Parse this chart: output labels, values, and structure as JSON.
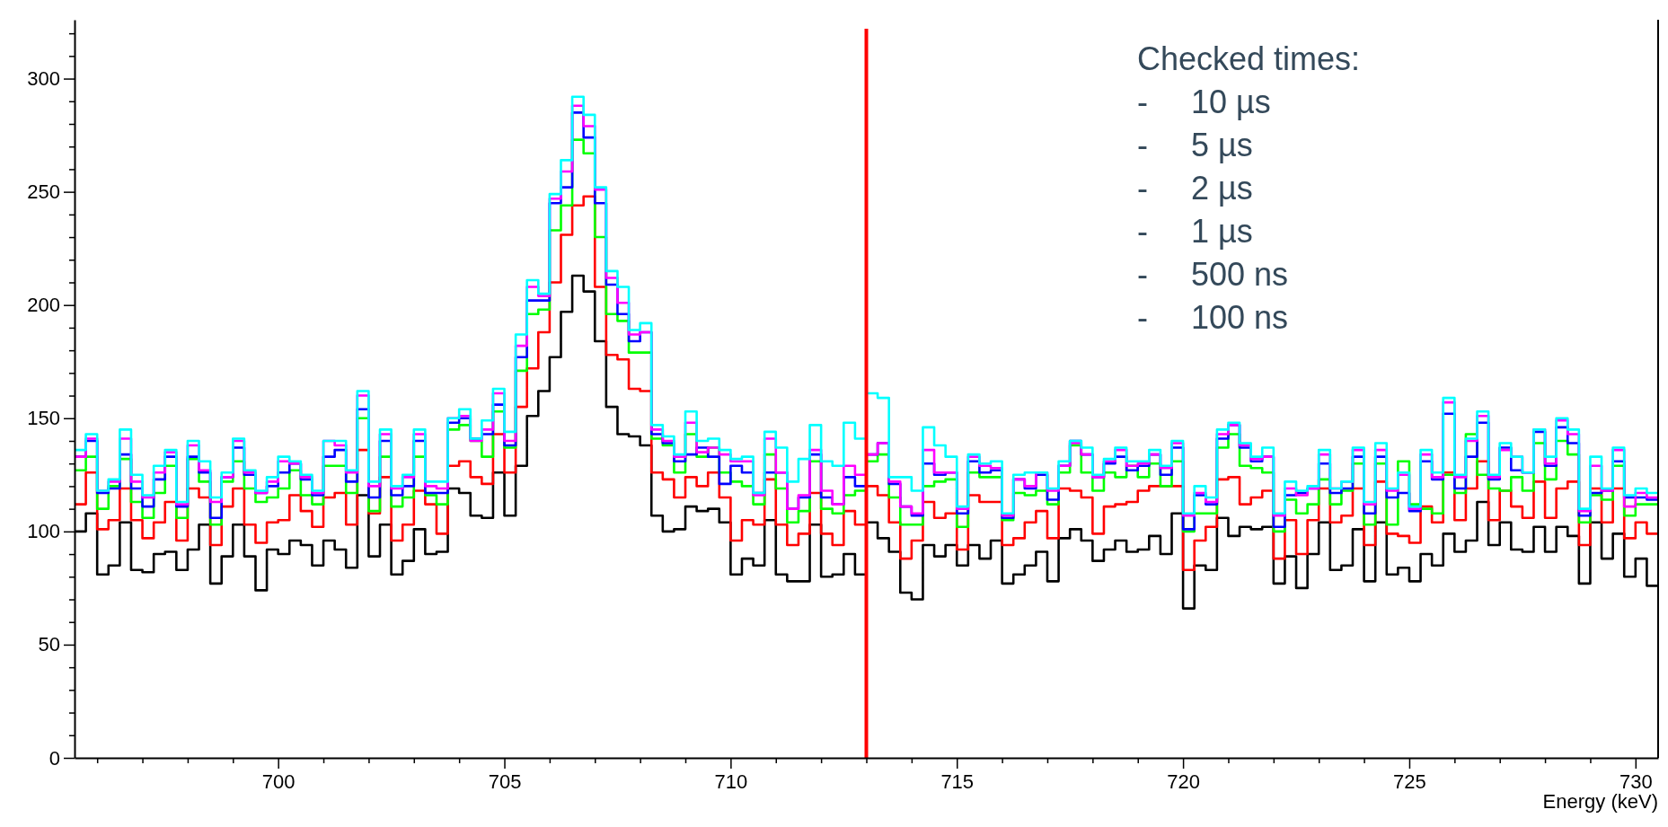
{
  "chart_data": {
    "type": "histogram",
    "xlabel": "Energy (keV)",
    "bins": [
      695.5,
      695.75,
      696,
      696.25,
      696.5,
      696.75,
      697,
      697.25,
      697.5,
      697.75,
      698,
      698.25,
      698.5,
      698.75,
      699,
      699.25,
      699.5,
      699.75,
      700,
      700.25,
      700.5,
      700.75,
      701,
      701.25,
      701.5,
      701.75,
      702,
      702.25,
      702.5,
      702.75,
      703,
      703.25,
      703.5,
      703.75,
      704,
      704.25,
      704.5,
      704.75,
      705,
      705.25,
      705.5,
      705.75,
      706,
      706.25,
      706.5,
      706.75,
      707,
      707.25,
      707.5,
      707.75,
      708,
      708.25,
      708.5,
      708.75,
      709,
      709.25,
      709.5,
      709.75,
      710,
      710.25,
      710.5,
      710.75,
      711,
      711.25,
      711.5,
      711.75,
      712,
      712.25,
      712.5,
      712.75,
      713,
      713.25,
      713.5,
      713.75,
      714,
      714.25,
      714.5,
      714.75,
      715,
      715.25,
      715.5,
      715.75,
      716,
      716.25,
      716.5,
      716.75,
      717,
      717.25,
      717.5,
      717.75,
      718,
      718.25,
      718.5,
      718.75,
      719,
      719.25,
      719.5,
      719.75,
      720,
      720.25,
      720.5,
      720.75,
      721,
      721.25,
      721.5,
      721.75,
      722,
      722.25,
      722.5,
      722.75,
      723,
      723.25,
      723.5,
      723.75,
      724,
      724.25,
      724.5,
      724.75,
      725,
      725.25,
      725.5,
      725.75,
      726,
      726.25,
      726.5,
      726.75,
      727,
      727.25,
      727.5,
      727.75,
      728,
      728.25,
      728.5,
      728.75,
      729,
      729.25,
      729.5,
      729.75,
      730,
      730.25,
      730.5
    ],
    "series": [
      {
        "color": "#000000",
        "values": [
          100,
          108,
          81,
          85,
          104,
          83,
          82,
          90,
          91,
          83,
          92,
          103,
          77,
          89,
          103,
          89,
          74,
          92,
          90,
          96,
          94,
          85,
          96,
          92,
          84,
          116,
          89,
          103,
          81,
          87,
          101,
          90,
          91,
          119,
          117,
          107,
          106,
          126,
          107,
          129,
          151,
          162,
          177,
          197,
          213,
          206,
          184,
          155,
          143,
          142,
          138,
          107,
          100,
          101,
          111,
          109,
          110,
          104,
          81,
          88,
          85,
          105,
          81,
          78,
          78,
          103,
          80,
          81,
          90,
          81,
          104,
          97,
          91,
          73,
          70,
          94,
          89,
          94,
          85,
          94,
          88,
          96,
          77,
          81,
          85,
          91,
          78,
          97,
          101,
          96,
          87,
          92,
          96,
          91,
          92,
          98,
          90,
          108,
          66,
          85,
          83,
          106,
          98,
          102,
          101,
          102,
          77,
          89,
          75,
          90,
          104,
          83,
          85,
          101,
          78,
          104,
          81,
          84,
          78,
          90,
          85,
          99,
          91,
          96,
          113,
          94,
          104,
          92,
          91,
          102,
          91,
          102,
          98,
          77,
          104,
          88,
          99,
          80,
          88,
          76
        ]
      },
      {
        "color": "#ff0000",
        "values": [
          112,
          126,
          101,
          105,
          119,
          105,
          97,
          104,
          113,
          96,
          119,
          115,
          94,
          111,
          119,
          103,
          95,
          104,
          105,
          116,
          109,
          102,
          115,
          117,
          103,
          136,
          108,
          124,
          96,
          103,
          118,
          112,
          99,
          129,
          131,
          124,
          121,
          143,
          126,
          155,
          172,
          188,
          210,
          231,
          244,
          248,
          208,
          178,
          176,
          163,
          162,
          126,
          123,
          115,
          124,
          120,
          126,
          115,
          96,
          105,
          103,
          123,
          103,
          94,
          99,
          117,
          99,
          94,
          109,
          103,
          120,
          116,
          104,
          88,
          96,
          113,
          106,
          108,
          92,
          116,
          113,
          113,
          94,
          97,
          104,
          109,
          97,
          119,
          118,
          115,
          99,
          111,
          112,
          113,
          118,
          120,
          120,
          120,
          83,
          96,
          102,
          123,
          124,
          112,
          115,
          118,
          88,
          105,
          90,
          105,
          119,
          104,
          107,
          119,
          94,
          122,
          99,
          98,
          95,
          111,
          104,
          126,
          105,
          119,
          131,
          105,
          118,
          111,
          106,
          122,
          106,
          119,
          122,
          94,
          119,
          104,
          119,
          97,
          104,
          99
        ]
      },
      {
        "color": "#00ff00",
        "values": [
          127,
          133,
          110,
          120,
          132,
          113,
          106,
          117,
          129,
          106,
          132,
          122,
          103,
          122,
          131,
          119,
          113,
          115,
          119,
          127,
          116,
          112,
          129,
          129,
          117,
          150,
          109,
          133,
          111,
          115,
          133,
          116,
          112,
          145,
          147,
          140,
          133,
          153,
          137,
          171,
          196,
          198,
          233,
          244,
          273,
          267,
          230,
          196,
          193,
          179,
          179,
          141,
          138,
          126,
          143,
          133,
          137,
          126,
          122,
          120,
          112,
          134,
          119,
          104,
          109,
          131,
          110,
          108,
          116,
          118,
          131,
          134,
          115,
          103,
          103,
          120,
          122,
          123,
          102,
          126,
          124,
          124,
          105,
          117,
          116,
          118,
          112,
          126,
          138,
          126,
          118,
          126,
          124,
          129,
          124,
          130,
          120,
          131,
          100,
          108,
          108,
          137,
          143,
          129,
          128,
          126,
          100,
          114,
          108,
          112,
          123,
          112,
          118,
          130,
          103,
          130,
          103,
          131,
          112,
          110,
          108,
          125,
          117,
          143,
          125,
          119,
          118,
          124,
          118,
          139,
          123,
          140,
          134,
          104,
          116,
          114,
          129,
          107,
          112,
          112
        ]
      },
      {
        "color": "#0000ff",
        "values": [
          133,
          140,
          117,
          119,
          134,
          119,
          111,
          123,
          133,
          111,
          133,
          126,
          106,
          124,
          137,
          125,
          117,
          120,
          126,
          130,
          123,
          116,
          133,
          136,
          122,
          154,
          115,
          140,
          116,
          120,
          140,
          117,
          117,
          148,
          150,
          141,
          143,
          156,
          138,
          177,
          202,
          202,
          245,
          252,
          285,
          274,
          245,
          209,
          196,
          184,
          188,
          143,
          139,
          131,
          134,
          137,
          133,
          121,
          129,
          126,
          117,
          126,
          126,
          110,
          115,
          134,
          115,
          112,
          124,
          120,
          134,
          139,
          121,
          111,
          107,
          130,
          125,
          126,
          108,
          131,
          126,
          127,
          106,
          123,
          119,
          125,
          114,
          129,
          140,
          134,
          124,
          130,
          133,
          127,
          129,
          134,
          125,
          137,
          101,
          116,
          112,
          141,
          147,
          137,
          131,
          133,
          102,
          116,
          117,
          119,
          130,
          117,
          119,
          133,
          108,
          133,
          115,
          117,
          109,
          131,
          123,
          152,
          119,
          133,
          148,
          123,
          137,
          127,
          126,
          144,
          129,
          146,
          139,
          107,
          117,
          118,
          131,
          115,
          115,
          114
        ]
      },
      {
        "color": "#ff00ff",
        "values": [
          133,
          141,
          118,
          122,
          141,
          122,
          115,
          126,
          135,
          112,
          138,
          127,
          113,
          124,
          140,
          126,
          117,
          122,
          131,
          130,
          124,
          117,
          140,
          138,
          126,
          160,
          120,
          143,
          119,
          124,
          143,
          120,
          119,
          150,
          151,
          140,
          145,
          161,
          140,
          182,
          208,
          204,
          247,
          259,
          288,
          279,
          251,
          212,
          201,
          187,
          188,
          145,
          140,
          133,
          148,
          135,
          137,
          134,
          131,
          131,
          116,
          141,
          126,
          110,
          116,
          136,
          118,
          112,
          129,
          125,
          134,
          139,
          122,
          111,
          108,
          136,
          126,
          126,
          110,
          133,
          129,
          128,
          107,
          123,
          120,
          126,
          118,
          129,
          139,
          134,
          124,
          131,
          136,
          129,
          130,
          134,
          128,
          139,
          107,
          117,
          113,
          143,
          147,
          138,
          132,
          133,
          107,
          119,
          116,
          119,
          134,
          119,
          122,
          136,
          112,
          136,
          118,
          125,
          110,
          134,
          124,
          157,
          124,
          140,
          151,
          124,
          136,
          133,
          126,
          145,
          130,
          149,
          143,
          109,
          129,
          118,
          136,
          111,
          117,
          115
        ]
      },
      {
        "color": "#00ffff",
        "values": [
          136,
          143,
          118,
          123,
          145,
          125,
          116,
          129,
          136,
          113,
          140,
          131,
          115,
          126,
          141,
          127,
          118,
          124,
          133,
          131,
          125,
          118,
          140,
          140,
          127,
          162,
          122,
          145,
          120,
          125,
          145,
          122,
          122,
          150,
          154,
          141,
          149,
          163,
          144,
          187,
          211,
          205,
          249,
          264,
          292,
          284,
          252,
          215,
          208,
          189,
          192,
          147,
          142,
          134,
          153,
          140,
          141,
          136,
          132,
          133,
          117,
          144,
          137,
          122,
          132,
          147,
          131,
          129,
          148,
          141,
          161,
          159,
          124,
          124,
          118,
          146,
          138,
          133,
          111,
          134,
          130,
          131,
          108,
          125,
          126,
          126,
          119,
          131,
          140,
          137,
          125,
          132,
          137,
          131,
          131,
          136,
          129,
          140,
          108,
          120,
          115,
          145,
          148,
          139,
          133,
          137,
          108,
          122,
          118,
          120,
          136,
          119,
          122,
          137,
          113,
          139,
          119,
          126,
          111,
          136,
          126,
          159,
          125,
          141,
          153,
          125,
          139,
          133,
          126,
          145,
          133,
          150,
          145,
          110,
          133,
          119,
          137,
          116,
          119,
          117
        ]
      }
    ],
    "xlim": [
      695.5,
      730.5
    ],
    "xticks": [
      {
        "value": 696,
        "label": null
      },
      {
        "value": 697,
        "label": null
      },
      {
        "value": 698,
        "label": null
      },
      {
        "value": 699,
        "label": null
      },
      700,
      {
        "value": 701,
        "label": null
      },
      {
        "value": 702,
        "label": null
      },
      {
        "value": 703,
        "label": null
      },
      {
        "value": 704,
        "label": null
      },
      705,
      {
        "value": 706,
        "label": null
      },
      {
        "value": 707,
        "label": null
      },
      {
        "value": 708,
        "label": null
      },
      {
        "value": 709,
        "label": null
      },
      710,
      {
        "value": 711,
        "label": null
      },
      {
        "value": 712,
        "label": null
      },
      {
        "value": 713,
        "label": null
      },
      {
        "value": 714,
        "label": null
      },
      715,
      {
        "value": 716,
        "label": null
      },
      {
        "value": 717,
        "label": null
      },
      {
        "value": 718,
        "label": null
      },
      {
        "value": 719,
        "label": null
      },
      720,
      {
        "value": 721,
        "label": null
      },
      {
        "value": 722,
        "label": null
      },
      {
        "value": 723,
        "label": null
      },
      {
        "value": 724,
        "label": null
      },
      725,
      {
        "value": 726,
        "label": null
      },
      {
        "value": 727,
        "label": null
      },
      {
        "value": 728,
        "label": null
      },
      {
        "value": 729,
        "label": null
      },
      730
    ],
    "ylim": [
      0,
      326
    ],
    "yticks": [
      0,
      {
        "value": 10,
        "label": null
      },
      {
        "value": 20,
        "label": null
      },
      {
        "value": 30,
        "label": null
      },
      {
        "value": 40,
        "label": null
      },
      50,
      {
        "value": 60,
        "label": null
      },
      {
        "value": 70,
        "label": null
      },
      {
        "value": 80,
        "label": null
      },
      {
        "value": 90,
        "label": null
      },
      100,
      {
        "value": 110,
        "label": null
      },
      {
        "value": 120,
        "label": null
      },
      {
        "value": 130,
        "label": null
      },
      {
        "value": 140,
        "label": null
      },
      150,
      {
        "value": 160,
        "label": null
      },
      {
        "value": 170,
        "label": null
      },
      {
        "value": 180,
        "label": null
      },
      {
        "value": 190,
        "label": null
      },
      200,
      {
        "value": 210,
        "label": null
      },
      {
        "value": 220,
        "label": null
      },
      {
        "value": 230,
        "label": null
      },
      {
        "value": 240,
        "label": null
      },
      250,
      {
        "value": 260,
        "label": null
      },
      {
        "value": 270,
        "label": null
      },
      {
        "value": 280,
        "label": null
      },
      {
        "value": 290,
        "label": null
      },
      300,
      {
        "value": 310,
        "label": null
      },
      {
        "value": 320,
        "label": null
      }
    ],
    "ref_lines": [
      {
        "axis": "x",
        "value": 713,
        "color": "#ff0000"
      }
    ],
    "annotations": [
      "Checked times:",
      "- 10 µs",
      "- 5 µs",
      "- 2 µs",
      "- 1 µs",
      "- 500 ns",
      "- 100 ns"
    ]
  }
}
